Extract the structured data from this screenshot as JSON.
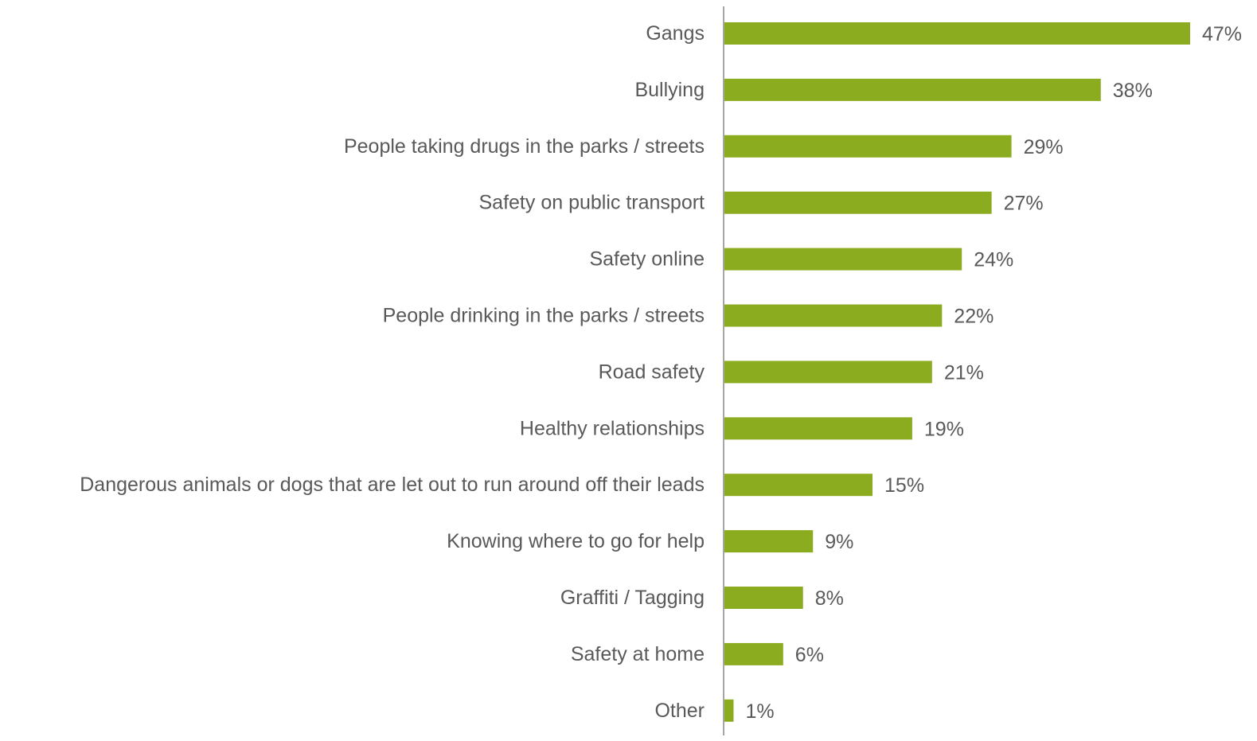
{
  "chart_data": {
    "type": "bar",
    "orientation": "horizontal",
    "categories": [
      "Gangs",
      "Bullying",
      "People taking drugs in the parks / streets",
      "Safety on public transport",
      "Safety online",
      "People drinking in the parks / streets",
      "Road safety",
      "Healthy relationships",
      "Dangerous animals or dogs that are let out to run around off their leads",
      "Knowing where to go for help",
      "Graffiti / Tagging",
      "Safety at home",
      "Other"
    ],
    "values": [
      47,
      38,
      29,
      27,
      24,
      22,
      21,
      19,
      15,
      9,
      8,
      6,
      1
    ],
    "value_labels": [
      "47%",
      "38%",
      "29%",
      "27%",
      "24%",
      "22%",
      "21%",
      "19%",
      "15%",
      "9%",
      "8%",
      "6%",
      "1%"
    ],
    "unit": "%",
    "xlim": [
      0,
      47
    ],
    "grid": false,
    "legend": "none",
    "colors": {
      "bar": "#8CAC1F",
      "axis": "#A6A6A6",
      "text": "#595959"
    }
  }
}
